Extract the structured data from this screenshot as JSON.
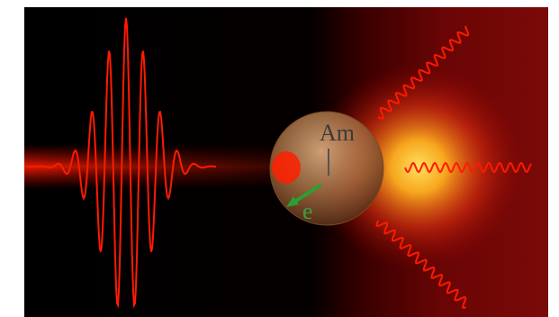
{
  "labels": {
    "atom": "Am",
    "electron": "e"
  }
}
